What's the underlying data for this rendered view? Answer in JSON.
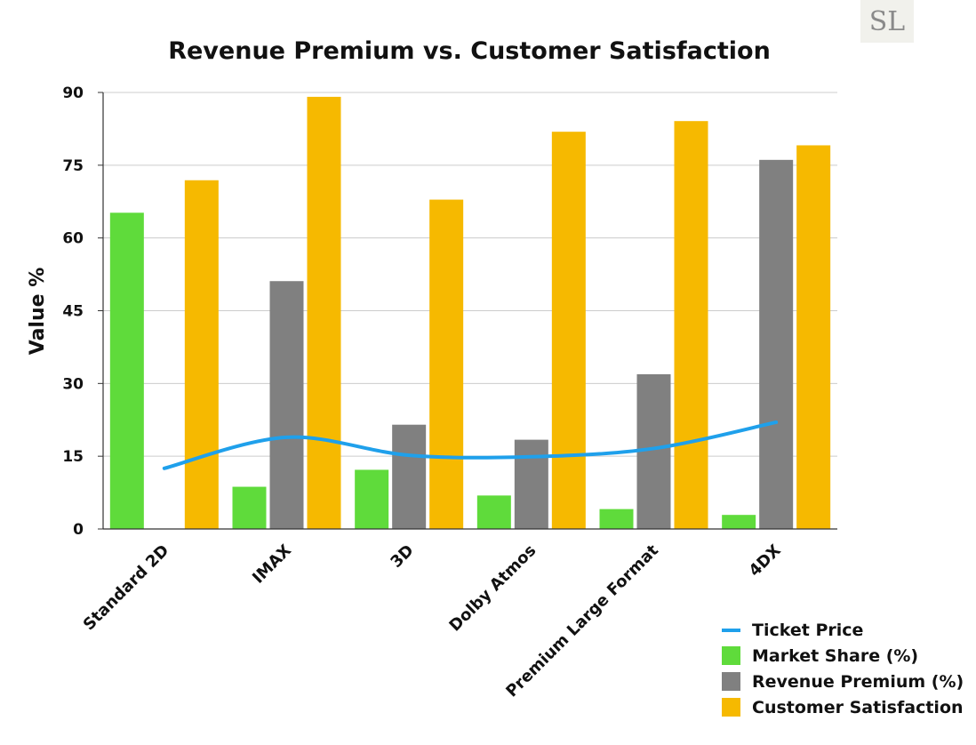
{
  "logo_text": "SL",
  "chart_data": {
    "type": "bar",
    "title": "Revenue Premium vs. Customer Satisfaction",
    "xlabel": "",
    "ylabel": "Value %",
    "ylim": [
      0,
      90
    ],
    "yticks": [
      0,
      15,
      30,
      45,
      60,
      75,
      90
    ],
    "grid": true,
    "legend_position": "bottom-right",
    "categories": [
      "Standard 2D",
      "IMAX",
      "3D",
      "Dolby Atmos",
      "Premium Large Format",
      "4DX"
    ],
    "series": [
      {
        "name": "Market Share (%)",
        "kind": "bar",
        "color": "#5fdb3b",
        "values": [
          65.2,
          8.7,
          12.2,
          6.9,
          4.1,
          2.9
        ]
      },
      {
        "name": "Revenue Premium (%)",
        "kind": "bar",
        "color": "#808080",
        "values": [
          0,
          51.1,
          21.5,
          18.4,
          31.9,
          76.1
        ]
      },
      {
        "name": "Customer Satisfaction",
        "kind": "bar",
        "color": "#f6b900",
        "values": [
          71.9,
          89.1,
          67.9,
          81.9,
          84.1,
          79.1
        ]
      },
      {
        "name": "Ticket Price",
        "kind": "line",
        "color": "#1fa0eb",
        "values": [
          12.5,
          18.9,
          15.2,
          14.9,
          16.6,
          22.0
        ]
      }
    ],
    "legend_order": [
      "Ticket Price",
      "Market Share (%)",
      "Revenue Premium (%)",
      "Customer Satisfaction"
    ]
  }
}
